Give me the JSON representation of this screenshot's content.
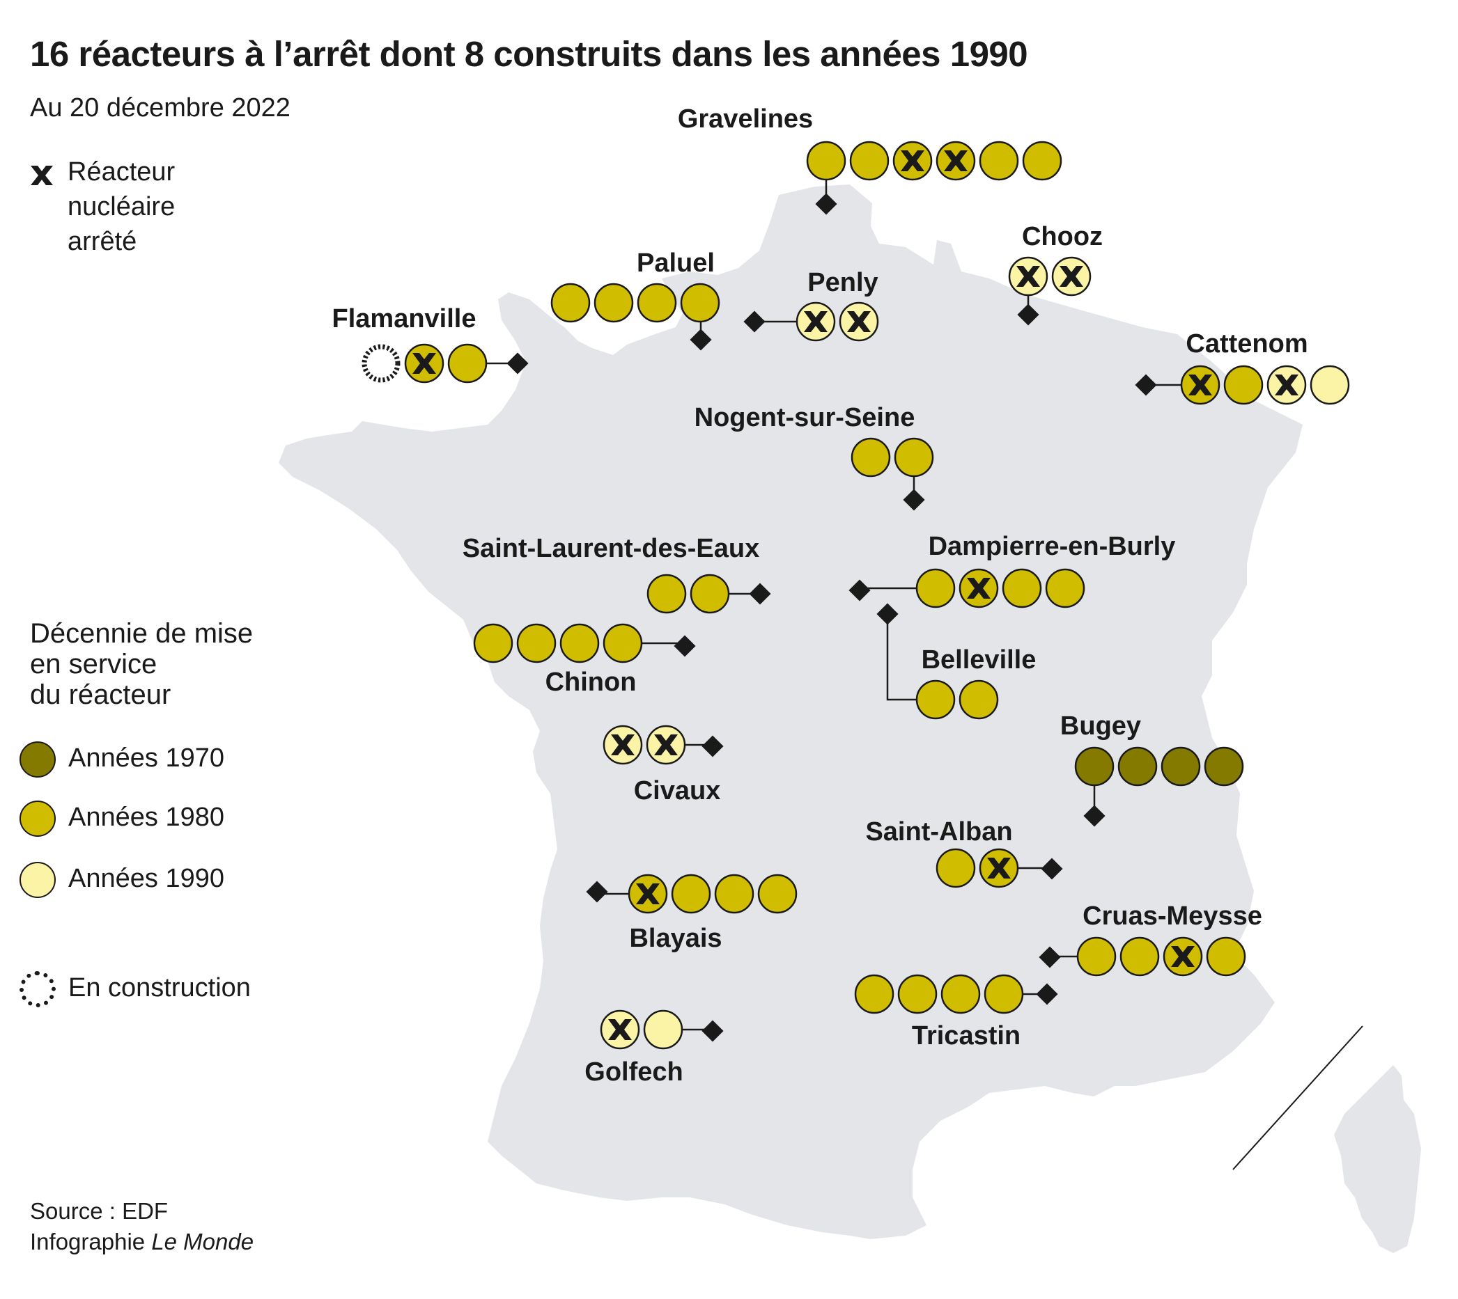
{
  "title": "16 réacteurs à l’arrêt dont 8 construits dans les années 1990",
  "subtitle": "Au 20 décembre 2022",
  "legend_stopped": {
    "icon": "x-icon",
    "lines": [
      "Réacteur",
      "nucléaire",
      "arrêté"
    ]
  },
  "legend_decade": {
    "title_lines": [
      "Décennie de mise",
      "en service",
      "du réacteur"
    ],
    "items": [
      {
        "label": "Années 1970",
        "color": "#857a00"
      },
      {
        "label": "Années 1980",
        "color": "#d1bd00"
      },
      {
        "label": "Années 1990",
        "color": "#fbf3a6"
      }
    ],
    "construction_label": "En construction"
  },
  "colors": {
    "1970": "#857a00",
    "1980": "#d1bd00",
    "1990": "#fbf3a6",
    "map_fill": "#e3e5e8",
    "stroke": "#1a1a1a"
  },
  "source_lines": [
    "Source : EDF",
    "Infographie "
  ],
  "source_italic": "Le Monde",
  "sites": [
    {
      "name": "Gravelines",
      "reactors": [
        {
          "decade": "1980",
          "stopped": false
        },
        {
          "decade": "1980",
          "stopped": false
        },
        {
          "decade": "1980",
          "stopped": true
        },
        {
          "decade": "1980",
          "stopped": true
        },
        {
          "decade": "1980",
          "stopped": false
        },
        {
          "decade": "1980",
          "stopped": false
        }
      ]
    },
    {
      "name": "Chooz",
      "reactors": [
        {
          "decade": "1990",
          "stopped": true
        },
        {
          "decade": "1990",
          "stopped": true
        }
      ]
    },
    {
      "name": "Paluel",
      "reactors": [
        {
          "decade": "1980",
          "stopped": false
        },
        {
          "decade": "1980",
          "stopped": false
        },
        {
          "decade": "1980",
          "stopped": false
        },
        {
          "decade": "1980",
          "stopped": false
        }
      ]
    },
    {
      "name": "Penly",
      "reactors": [
        {
          "decade": "1990",
          "stopped": true
        },
        {
          "decade": "1990",
          "stopped": true
        }
      ]
    },
    {
      "name": "Flamanville",
      "reactors": [
        {
          "decade": "construction",
          "stopped": false
        },
        {
          "decade": "1980",
          "stopped": true
        },
        {
          "decade": "1980",
          "stopped": false
        }
      ]
    },
    {
      "name": "Cattenom",
      "reactors": [
        {
          "decade": "1980",
          "stopped": true
        },
        {
          "decade": "1980",
          "stopped": false
        },
        {
          "decade": "1990",
          "stopped": true
        },
        {
          "decade": "1990",
          "stopped": false
        }
      ]
    },
    {
      "name": "Nogent-sur-Seine",
      "reactors": [
        {
          "decade": "1980",
          "stopped": false
        },
        {
          "decade": "1980",
          "stopped": false
        }
      ]
    },
    {
      "name": "Saint-Laurent-des-Eaux",
      "reactors": [
        {
          "decade": "1980",
          "stopped": false
        },
        {
          "decade": "1980",
          "stopped": false
        }
      ]
    },
    {
      "name": "Dampierre-en-Burly",
      "reactors": [
        {
          "decade": "1980",
          "stopped": false
        },
        {
          "decade": "1980",
          "stopped": true
        },
        {
          "decade": "1980",
          "stopped": false
        },
        {
          "decade": "1980",
          "stopped": false
        }
      ]
    },
    {
      "name": "Chinon",
      "reactors": [
        {
          "decade": "1980",
          "stopped": false
        },
        {
          "decade": "1980",
          "stopped": false
        },
        {
          "decade": "1980",
          "stopped": false
        },
        {
          "decade": "1980",
          "stopped": false
        }
      ]
    },
    {
      "name": "Belleville",
      "reactors": [
        {
          "decade": "1980",
          "stopped": false
        },
        {
          "decade": "1980",
          "stopped": false
        }
      ]
    },
    {
      "name": "Civaux",
      "reactors": [
        {
          "decade": "1990",
          "stopped": true
        },
        {
          "decade": "1990",
          "stopped": true
        }
      ]
    },
    {
      "name": "Bugey",
      "reactors": [
        {
          "decade": "1970",
          "stopped": false
        },
        {
          "decade": "1970",
          "stopped": false
        },
        {
          "decade": "1970",
          "stopped": false
        },
        {
          "decade": "1970",
          "stopped": false
        }
      ]
    },
    {
      "name": "Saint-Alban",
      "reactors": [
        {
          "decade": "1980",
          "stopped": false
        },
        {
          "decade": "1980",
          "stopped": true
        }
      ]
    },
    {
      "name": "Blayais",
      "reactors": [
        {
          "decade": "1980",
          "stopped": true
        },
        {
          "decade": "1980",
          "stopped": false
        },
        {
          "decade": "1980",
          "stopped": false
        },
        {
          "decade": "1980",
          "stopped": false
        }
      ]
    },
    {
      "name": "Cruas-Meysse",
      "reactors": [
        {
          "decade": "1980",
          "stopped": false
        },
        {
          "decade": "1980",
          "stopped": false
        },
        {
          "decade": "1980",
          "stopped": true
        },
        {
          "decade": "1980",
          "stopped": false
        }
      ]
    },
    {
      "name": "Tricastin",
      "reactors": [
        {
          "decade": "1980",
          "stopped": false
        },
        {
          "decade": "1980",
          "stopped": false
        },
        {
          "decade": "1980",
          "stopped": false
        },
        {
          "decade": "1980",
          "stopped": false
        }
      ]
    },
    {
      "name": "Golfech",
      "reactors": [
        {
          "decade": "1990",
          "stopped": true
        },
        {
          "decade": "1990",
          "stopped": false
        }
      ]
    }
  ]
}
